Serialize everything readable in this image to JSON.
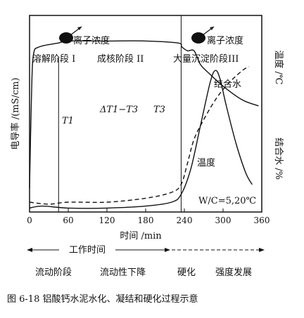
{
  "chart_data": {
    "type": "line",
    "xlabel": "时间 /min",
    "ylabel_left": "电导率 /(mS/cm)",
    "ylabel_right_top": "温度 /℃",
    "ylabel_right_bottom": "结合水 /%",
    "x_ticks": [
      0,
      60,
      120,
      180,
      240,
      300,
      360
    ],
    "xlim": [
      0,
      360
    ],
    "phase_boundaries": [
      45,
      235
    ],
    "stage_labels": [
      "溶解阶段 I",
      "成核阶段 II",
      "大量沉淀阶段III"
    ],
    "ion_labels": [
      "离子浓度",
      "离子浓度"
    ],
    "annotations": {
      "t1": "T1",
      "t3": "T3",
      "delta": "ΔT1−T3",
      "bound_water": "结合水",
      "temperature": "温度",
      "ratio": "W/C=5,20℃"
    },
    "series": [
      {
        "name": "电导率",
        "style": "solid",
        "points": [
          [
            0,
            12
          ],
          [
            3,
            60
          ],
          [
            6,
            80
          ],
          [
            15,
            84
          ],
          [
            45,
            86
          ],
          [
            60,
            87
          ],
          [
            120,
            87
          ],
          [
            180,
            87
          ],
          [
            230,
            86
          ],
          [
            236,
            84
          ],
          [
            245,
            82
          ],
          [
            255,
            82
          ],
          [
            265,
            75
          ],
          [
            280,
            70
          ],
          [
            300,
            64
          ],
          [
            330,
            57
          ],
          [
            355,
            54
          ]
        ]
      },
      {
        "name": "结合水",
        "style": "dashed",
        "points": [
          [
            0,
            5
          ],
          [
            30,
            4
          ],
          [
            60,
            5
          ],
          [
            120,
            5
          ],
          [
            180,
            7
          ],
          [
            220,
            10
          ],
          [
            235,
            14
          ],
          [
            245,
            25
          ],
          [
            255,
            37
          ],
          [
            270,
            47
          ],
          [
            290,
            58
          ],
          [
            310,
            66
          ],
          [
            330,
            72
          ],
          [
            340,
            74
          ]
        ]
      },
      {
        "name": "温度",
        "style": "solid",
        "points": [
          [
            0,
            2
          ],
          [
            20,
            3
          ],
          [
            60,
            2
          ],
          [
            120,
            2
          ],
          [
            180,
            3
          ],
          [
            220,
            5
          ],
          [
            235,
            9
          ],
          [
            250,
            22
          ],
          [
            265,
            44
          ],
          [
            280,
            66
          ],
          [
            288,
            72
          ],
          [
            295,
            68
          ],
          [
            305,
            54
          ],
          [
            320,
            35
          ],
          [
            335,
            20
          ],
          [
            345,
            14
          ]
        ]
      }
    ]
  },
  "timeline": {
    "work_time": "工作时间",
    "labels": [
      "流动阶段",
      "流动性下降",
      "硬化",
      "强度发展"
    ]
  },
  "caption": "图 6-18   铝酸钙水泥水化、凝结和硬化过程示意"
}
